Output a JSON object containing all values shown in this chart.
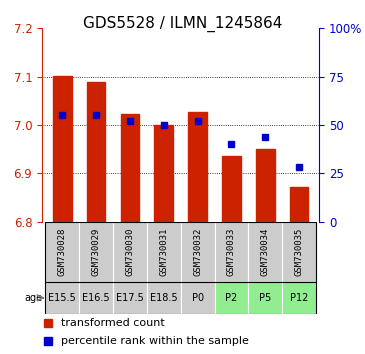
{
  "title": "GDS5528 / ILMN_1245864",
  "samples": [
    "GSM730028",
    "GSM730029",
    "GSM730030",
    "GSM730031",
    "GSM730032",
    "GSM730033",
    "GSM730034",
    "GSM730035"
  ],
  "ages": [
    "E15.5",
    "E16.5",
    "E17.5",
    "E18.5",
    "P0",
    "P2",
    "P5",
    "P12"
  ],
  "age_colors": [
    "#cccccc",
    "#cccccc",
    "#cccccc",
    "#cccccc",
    "#cccccc",
    "#90ee90",
    "#90ee90",
    "#90ee90"
  ],
  "transformed_counts": [
    7.102,
    7.088,
    7.022,
    7.0,
    7.027,
    6.935,
    6.95,
    6.872
  ],
  "percentile_ranks": [
    55,
    55,
    52,
    50,
    52,
    40,
    44,
    28
  ],
  "ylim_left": [
    6.8,
    7.2
  ],
  "ylim_right": [
    0,
    100
  ],
  "yticks_left": [
    6.8,
    6.9,
    7.0,
    7.1,
    7.2
  ],
  "yticks_right": [
    0,
    25,
    50,
    75,
    100
  ],
  "bar_color": "#cc2200",
  "dot_color": "#0000cc",
  "bar_bottom": 6.8,
  "bg_sample_label": "#cccccc",
  "title_fontsize": 11,
  "tick_fontsize": 8.5,
  "legend_fontsize": 8
}
